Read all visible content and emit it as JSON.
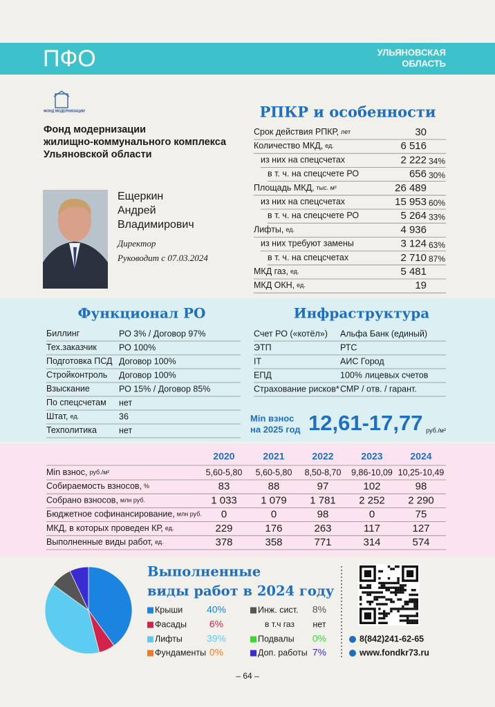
{
  "header": {
    "region": "ПФО",
    "subregion_lines": [
      "УЛЬЯНОВСКАЯ",
      "ОБЛАСТЬ"
    ]
  },
  "organization": {
    "logo_text": "ФОНД МОДЕРНИЗАЦИИ",
    "name_lines": [
      "Фонд модернизации",
      "жилищно-коммунального комплекса",
      "Ульяновской области"
    ]
  },
  "person": {
    "name_lines": [
      "Ещеркин",
      "Андрей",
      "Владимирович"
    ],
    "position": "Директор",
    "since": "Руководит с 07.03.2024"
  },
  "rpkr": {
    "title": "РПКР и особенности",
    "rows": [
      {
        "label": "Срок действия РПКР,",
        "unit": "лет",
        "value": "30"
      },
      {
        "label": "Количество МКД,",
        "unit": "ед.",
        "value": "6 516"
      },
      {
        "label": "из них на спецсчетах",
        "value": "2 222",
        "share": "34%"
      },
      {
        "label": "в т. ч. на спецсчете РО",
        "value": "656",
        "share": "30%"
      },
      {
        "label": "Площадь МКД,",
        "unit": "тыс. м²",
        "value": "26 489"
      },
      {
        "label": "из них на спецсчетах",
        "value": "15 953",
        "share": "60%"
      },
      {
        "label": "в т. ч. на спецсчете РО",
        "value": "5 264",
        "share": "33%"
      },
      {
        "label": "Лифты,",
        "unit": "ед.",
        "value": "4 936"
      },
      {
        "label": "из них требуют замены",
        "value": "3 124",
        "share": "63%"
      },
      {
        "label": "в т. ч. на спецсчетах",
        "value": "2 710",
        "share": "87%"
      },
      {
        "label": "МКД газ,",
        "unit": "ед.",
        "value": "5 481"
      },
      {
        "label": "МКД ОКН,",
        "unit": "ед.",
        "value": "19"
      }
    ]
  },
  "functional": {
    "title": "Функционал РО",
    "rows": [
      {
        "label": "Биллинг",
        "value": "РО 3% / Договор 97%"
      },
      {
        "label": "Тех.заказчик",
        "value": "РО 100%"
      },
      {
        "label": "Подготовка ПСД",
        "value": "Договор 100%"
      },
      {
        "label": "Стройконтроль",
        "value": "Договор 100%"
      },
      {
        "label": "Взыскание",
        "value": "РО 15% / Договор 85%"
      },
      {
        "label": "По спецсчетам",
        "value": "нет"
      },
      {
        "label": "Штат,",
        "unit": "ед.",
        "value": "36"
      },
      {
        "label": "Техполитика",
        "value": "нет"
      }
    ]
  },
  "infrastructure": {
    "title": "Инфраструктура",
    "rows": [
      {
        "label": "Счет РО («котёл»)",
        "value": "Альфа Банк (единый)"
      },
      {
        "label": "ЭТП",
        "value": "РТС"
      },
      {
        "label": "IT",
        "value": "АИС Город"
      },
      {
        "label": "ЕПД",
        "value": "100% лицевых счетов"
      },
      {
        "label": "Страхование рисков*",
        "value": "СМР / отв. / гарант."
      }
    ]
  },
  "min_fee": {
    "label_lines": [
      "Min взнос",
      "на 2025 год"
    ],
    "value": "12,61-17,77",
    "unit": "руб./м²"
  },
  "stats": {
    "years": [
      "2020",
      "2021",
      "2022",
      "2023",
      "2024"
    ],
    "rows": [
      {
        "label": "Min взнос,",
        "unit": "руб./м²",
        "values": [
          "5,60-5,80",
          "5,60-5,80",
          "8,50-8,70",
          "9,86-10,09",
          "10,25-10,49"
        ]
      },
      {
        "label": "Собираемость взносов,",
        "unit": "%",
        "values": [
          "83",
          "88",
          "97",
          "102",
          "98"
        ]
      },
      {
        "label": "Собрано взносов,",
        "unit": "млн руб.",
        "values": [
          "1 033",
          "1 079",
          "1 781",
          "2 252",
          "2 290"
        ]
      },
      {
        "label": "Бюджетное софинансирование,",
        "unit": "млн руб.",
        "values": [
          "0",
          "0",
          "98",
          "0",
          "75"
        ]
      },
      {
        "label": "МКД, в которых проведен КР,",
        "unit": "ед.",
        "values": [
          "229",
          "176",
          "263",
          "117",
          "127"
        ]
      },
      {
        "label": "Выполненные виды работ,",
        "unit": "ед.",
        "values": [
          "378",
          "358",
          "771",
          "314",
          "574"
        ]
      }
    ]
  },
  "chart_data": {
    "type": "pie",
    "title_lines": [
      "Выполненные",
      "виды работ в 2024 году"
    ],
    "categories": [
      "Крыши",
      "Фасады",
      "Лифты",
      "Фундаменты",
      "Инж. сист.",
      "Подвалы",
      "Доп. работы"
    ],
    "values": [
      40,
      6,
      39,
      0,
      8,
      0,
      7
    ],
    "value_labels": [
      "40%",
      "6%",
      "39%",
      "0%",
      "8%",
      "0%",
      "7%"
    ],
    "colors": [
      "#1a84e0",
      "#d2234d",
      "#5ccdf0",
      "#f07a22",
      "#555555",
      "#3ed43a",
      "#3a2bd0"
    ]
  },
  "gas_note": {
    "label": "в т.ч газ",
    "value": "нет"
  },
  "contacts": {
    "phone": "8(842)241-62-65",
    "site": "www.fondkr73.ru"
  },
  "page_number": "– 64 –"
}
